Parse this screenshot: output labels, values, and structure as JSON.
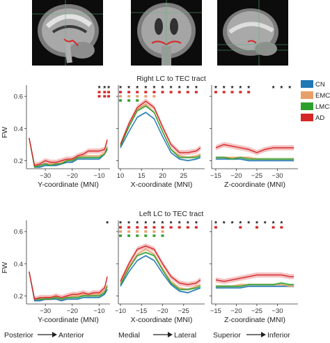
{
  "figure": {
    "row_titles": [
      "Right LC to TEC tract",
      "Left LC to TEC tract"
    ],
    "ylabel": "FW",
    "xlabels": [
      "Y-coordinate (MNI)",
      "X-coordinate (MNI)",
      "Z-coordinate (MNI)"
    ],
    "legend": [
      {
        "label": "CN",
        "color": "#1f77b4"
      },
      {
        "label": "EMCI",
        "color": "#e8a06a"
      },
      {
        "label": "LMCI",
        "color": "#2ca02c"
      },
      {
        "label": "AD",
        "color": "#d62728"
      }
    ],
    "direction_labels": [
      {
        "from": "Posterior",
        "to": "Anterior"
      },
      {
        "from": "Medial",
        "to": "Lateral"
      },
      {
        "from": "Superior",
        "to": "Inferior"
      }
    ]
  },
  "chart_data": [
    {
      "type": "line",
      "title": "Right LC to TEC tract",
      "xlabel": "Y-coordinate (MNI)",
      "ylabel": "FW",
      "xlim": [
        -37,
        -6
      ],
      "ylim": [
        0.15,
        0.67
      ],
      "xticks": [
        -30,
        -20,
        -10
      ],
      "xticklabels": [
        "-30",
        "-20",
        "-10"
      ],
      "yticks": [
        0.2,
        0.4,
        0.6
      ],
      "yticklabels": [
        "0.2",
        "0.4",
        "0.6"
      ],
      "x": [
        -36,
        -34,
        -32,
        -30,
        -28,
        -26,
        -24,
        -22,
        -20,
        -18,
        -16,
        -14,
        -12,
        -10,
        -8,
        -7
      ],
      "series": [
        {
          "name": "CN",
          "values": [
            0.34,
            0.16,
            0.16,
            0.17,
            0.17,
            0.17,
            0.18,
            0.19,
            0.19,
            0.21,
            0.21,
            0.21,
            0.21,
            0.21,
            0.24,
            0.27
          ]
        },
        {
          "name": "EMCI",
          "values": [
            0.34,
            0.17,
            0.17,
            0.18,
            0.18,
            0.18,
            0.19,
            0.2,
            0.21,
            0.22,
            0.23,
            0.23,
            0.23,
            0.23,
            0.25,
            0.29
          ]
        },
        {
          "name": "LMCI",
          "values": [
            0.34,
            0.16,
            0.17,
            0.18,
            0.17,
            0.18,
            0.18,
            0.2,
            0.2,
            0.22,
            0.22,
            0.22,
            0.22,
            0.22,
            0.24,
            0.28
          ]
        },
        {
          "name": "AD",
          "values": [
            0.34,
            0.17,
            0.18,
            0.2,
            0.19,
            0.19,
            0.2,
            0.21,
            0.21,
            0.23,
            0.24,
            0.26,
            0.26,
            0.26,
            0.27,
            0.33
          ]
        }
      ],
      "significance": [
        {
          "x": -10,
          "marks": [
            "*",
            "#d62728",
            "#d62728"
          ]
        },
        {
          "x": -8,
          "marks": [
            "*",
            "#d62728",
            "#d62728"
          ]
        },
        {
          "x": -6.5,
          "marks": [
            "*",
            "#d62728",
            "#d62728"
          ]
        }
      ]
    },
    {
      "type": "line",
      "title": "",
      "xlabel": "X-coordinate (MNI)",
      "ylabel": "FW",
      "xlim": [
        9.5,
        30
      ],
      "ylim": [
        0.15,
        0.67
      ],
      "xticks": [
        10,
        15,
        20,
        25
      ],
      "xticklabels": [
        "10",
        "15",
        "20",
        "25"
      ],
      "yticks": [
        0.2,
        0.4,
        0.6
      ],
      "yticklabels": [
        "",
        "",
        ""
      ],
      "x": [
        10,
        12,
        14,
        16,
        18,
        20,
        22,
        24,
        26,
        28,
        29
      ],
      "series": [
        {
          "name": "CN",
          "values": [
            0.28,
            0.38,
            0.47,
            0.5,
            0.46,
            0.35,
            0.25,
            0.21,
            0.2,
            0.21,
            0.22
          ]
        },
        {
          "name": "EMCI",
          "values": [
            0.29,
            0.41,
            0.52,
            0.55,
            0.5,
            0.38,
            0.27,
            0.23,
            0.22,
            0.23,
            0.24
          ]
        },
        {
          "name": "LMCI",
          "values": [
            0.29,
            0.41,
            0.51,
            0.54,
            0.5,
            0.38,
            0.27,
            0.22,
            0.22,
            0.22,
            0.23
          ]
        },
        {
          "name": "AD",
          "values": [
            0.3,
            0.43,
            0.53,
            0.57,
            0.53,
            0.41,
            0.3,
            0.25,
            0.25,
            0.26,
            0.28
          ]
        }
      ],
      "significance": [
        {
          "x": 10,
          "marks": [
            "*",
            "#d62728",
            "#e8a06a",
            "#2ca02c"
          ]
        },
        {
          "x": 12,
          "marks": [
            "*",
            "#d62728",
            "#e8a06a",
            "#2ca02c"
          ]
        },
        {
          "x": 14,
          "marks": [
            "*",
            "#d62728",
            "#e8a06a",
            "#2ca02c"
          ]
        },
        {
          "x": 16,
          "marks": [
            "*",
            "#d62728",
            "#e8a06a"
          ]
        },
        {
          "x": 18,
          "marks": [
            "*",
            "#d62728",
            "#e8a06a"
          ]
        },
        {
          "x": 20,
          "marks": [
            "*",
            "#d62728"
          ]
        },
        {
          "x": 22,
          "marks": [
            "*",
            "#d62728"
          ]
        },
        {
          "x": 24,
          "marks": [
            "*",
            "#d62728"
          ]
        },
        {
          "x": 26,
          "marks": [
            "*",
            "#d62728"
          ]
        },
        {
          "x": 28,
          "marks": [
            "*",
            "#d62728"
          ]
        }
      ]
    },
    {
      "type": "line",
      "title": "",
      "xlabel": "Z-coordinate (MNI)",
      "ylabel": "FW",
      "xlim": [
        -14,
        -35
      ],
      "ylim": [
        0.15,
        0.67
      ],
      "xticks": [
        -15,
        -20,
        -25,
        -30
      ],
      "xticklabels": [
        "-15",
        "-20",
        "-25",
        "-30"
      ],
      "yticks": [
        0.2,
        0.4,
        0.6
      ],
      "yticklabels": [
        "",
        "",
        ""
      ],
      "x": [
        -15,
        -17,
        -19,
        -21,
        -23,
        -25,
        -27,
        -29,
        -31,
        -33,
        -34
      ],
      "series": [
        {
          "name": "CN",
          "values": [
            0.21,
            0.21,
            0.21,
            0.21,
            0.2,
            0.2,
            0.2,
            0.2,
            0.2,
            0.2,
            0.2
          ]
        },
        {
          "name": "EMCI",
          "values": [
            0.22,
            0.22,
            0.22,
            0.22,
            0.22,
            0.21,
            0.21,
            0.21,
            0.21,
            0.21,
            0.21
          ]
        },
        {
          "name": "LMCI",
          "values": [
            0.22,
            0.22,
            0.21,
            0.22,
            0.21,
            0.21,
            0.21,
            0.21,
            0.21,
            0.21,
            0.21
          ]
        },
        {
          "name": "AD",
          "values": [
            0.28,
            0.3,
            0.29,
            0.28,
            0.27,
            0.25,
            0.27,
            0.28,
            0.28,
            0.28,
            0.28
          ]
        }
      ],
      "significance": [
        {
          "x": -15,
          "marks": [
            "*",
            "#d62728"
          ]
        },
        {
          "x": -17,
          "marks": [
            "*",
            "#d62728"
          ]
        },
        {
          "x": -19,
          "marks": [
            "*",
            "#d62728"
          ]
        },
        {
          "x": -21,
          "marks": [
            "*",
            "#d62728"
          ]
        },
        {
          "x": -23,
          "marks": [
            "*",
            "#d62728"
          ]
        },
        {
          "x": -29,
          "marks": [
            "*"
          ]
        },
        {
          "x": -31,
          "marks": [
            "*"
          ]
        },
        {
          "x": -33,
          "marks": [
            "*"
          ]
        }
      ]
    },
    {
      "type": "line",
      "title": "Left LC to TEC tract",
      "xlabel": "Y-coordinate (MNI)",
      "ylabel": "FW",
      "xlim": [
        -37,
        -6
      ],
      "ylim": [
        0.15,
        0.67
      ],
      "xticks": [
        -30,
        -20,
        -10
      ],
      "xticklabels": [
        "-30",
        "-20",
        "-10"
      ],
      "yticks": [
        0.2,
        0.4,
        0.6
      ],
      "yticklabels": [
        "0.2",
        "0.4",
        "0.6"
      ],
      "x": [
        -36,
        -34,
        -32,
        -30,
        -28,
        -26,
        -24,
        -22,
        -20,
        -18,
        -16,
        -14,
        -12,
        -10,
        -8,
        -7
      ],
      "series": [
        {
          "name": "CN",
          "values": [
            0.35,
            0.17,
            0.17,
            0.18,
            0.18,
            0.18,
            0.17,
            0.18,
            0.18,
            0.18,
            0.19,
            0.19,
            0.19,
            0.19,
            0.21,
            0.24
          ]
        },
        {
          "name": "EMCI",
          "values": [
            0.35,
            0.18,
            0.18,
            0.19,
            0.19,
            0.19,
            0.18,
            0.19,
            0.2,
            0.2,
            0.21,
            0.21,
            0.21,
            0.21,
            0.23,
            0.27
          ]
        },
        {
          "name": "LMCI",
          "values": [
            0.35,
            0.18,
            0.18,
            0.18,
            0.18,
            0.19,
            0.18,
            0.19,
            0.19,
            0.19,
            0.2,
            0.2,
            0.2,
            0.2,
            0.22,
            0.26
          ]
        },
        {
          "name": "AD",
          "values": [
            0.35,
            0.18,
            0.19,
            0.19,
            0.19,
            0.2,
            0.19,
            0.2,
            0.21,
            0.21,
            0.22,
            0.21,
            0.22,
            0.22,
            0.25,
            0.32
          ]
        }
      ],
      "significance": [
        {
          "x": -7,
          "marks": [
            "*"
          ]
        }
      ]
    },
    {
      "type": "line",
      "title": "",
      "xlabel": "X-coordinate (MNI)",
      "ylabel": "FW",
      "xlim": [
        -9.5,
        -30
      ],
      "ylim": [
        0.15,
        0.67
      ],
      "xticks": [
        -10,
        -15,
        -20,
        -25
      ],
      "xticklabels": [
        "-10",
        "-15",
        "-20",
        "-25"
      ],
      "yticks": [
        0.2,
        0.4,
        0.6
      ],
      "yticklabels": [
        "",
        "",
        ""
      ],
      "x": [
        -10,
        -12,
        -14,
        -16,
        -18,
        -20,
        -22,
        -24,
        -26,
        -28,
        -29
      ],
      "series": [
        {
          "name": "CN",
          "values": [
            0.26,
            0.35,
            0.42,
            0.45,
            0.42,
            0.34,
            0.27,
            0.23,
            0.22,
            0.24,
            0.25
          ]
        },
        {
          "name": "EMCI",
          "values": [
            0.28,
            0.38,
            0.46,
            0.49,
            0.46,
            0.37,
            0.29,
            0.25,
            0.24,
            0.26,
            0.27
          ]
        },
        {
          "name": "LMCI",
          "values": [
            0.27,
            0.37,
            0.45,
            0.47,
            0.45,
            0.36,
            0.28,
            0.24,
            0.24,
            0.25,
            0.26
          ]
        },
        {
          "name": "AD",
          "values": [
            0.29,
            0.4,
            0.49,
            0.51,
            0.49,
            0.4,
            0.32,
            0.28,
            0.27,
            0.28,
            0.3
          ]
        }
      ],
      "significance": [
        {
          "x": -10,
          "marks": [
            "*",
            "#d62728",
            "#e8a06a",
            "#2ca02c"
          ]
        },
        {
          "x": -12,
          "marks": [
            "*",
            "#d62728",
            "#e8a06a",
            "#2ca02c"
          ]
        },
        {
          "x": -14,
          "marks": [
            "*",
            "#d62728",
            "#e8a06a",
            "#2ca02c"
          ]
        },
        {
          "x": -16,
          "marks": [
            "*",
            "#d62728",
            "#e8a06a",
            "#2ca02c"
          ]
        },
        {
          "x": -18,
          "marks": [
            "*",
            "#d62728",
            "#e8a06a",
            "#2ca02c"
          ]
        },
        {
          "x": -20,
          "marks": [
            "*",
            "#d62728",
            "#e8a06a",
            "#2ca02c"
          ]
        },
        {
          "x": -22,
          "marks": [
            "*",
            "#d62728"
          ]
        },
        {
          "x": -24,
          "marks": [
            "*",
            "#d62728"
          ]
        },
        {
          "x": -26,
          "marks": [
            "*",
            "#d62728"
          ]
        },
        {
          "x": -28,
          "marks": [
            "*",
            "#d62728"
          ]
        }
      ]
    },
    {
      "type": "line",
      "title": "",
      "xlabel": "Z-coordinate (MNI)",
      "ylabel": "FW",
      "xlim": [
        -14,
        -35
      ],
      "ylim": [
        0.15,
        0.67
      ],
      "xticks": [
        -15,
        -20,
        -25,
        -30
      ],
      "xticklabels": [
        "-15",
        "-20",
        "-25",
        "-30"
      ],
      "yticks": [
        0.2,
        0.4,
        0.6
      ],
      "yticklabels": [
        "",
        "",
        ""
      ],
      "x": [
        -15,
        -17,
        -19,
        -21,
        -23,
        -25,
        -27,
        -29,
        -31,
        -33,
        -34
      ],
      "series": [
        {
          "name": "CN",
          "values": [
            0.25,
            0.25,
            0.25,
            0.25,
            0.26,
            0.26,
            0.26,
            0.26,
            0.26,
            0.26,
            0.26
          ]
        },
        {
          "name": "EMCI",
          "values": [
            0.26,
            0.26,
            0.26,
            0.27,
            0.27,
            0.27,
            0.27,
            0.27,
            0.27,
            0.26,
            0.26
          ]
        },
        {
          "name": "LMCI",
          "values": [
            0.26,
            0.26,
            0.26,
            0.26,
            0.27,
            0.27,
            0.27,
            0.27,
            0.28,
            0.27,
            0.27
          ]
        },
        {
          "name": "AD",
          "values": [
            0.3,
            0.29,
            0.3,
            0.31,
            0.32,
            0.33,
            0.33,
            0.33,
            0.33,
            0.32,
            0.32
          ]
        }
      ],
      "significance": [
        {
          "x": -15,
          "marks": [
            "*",
            "#d62728"
          ]
        },
        {
          "x": -17,
          "marks": [
            "*"
          ]
        },
        {
          "x": -19,
          "marks": [
            "*"
          ]
        },
        {
          "x": -21,
          "marks": [
            "*",
            "#d62728"
          ]
        },
        {
          "x": -23,
          "marks": [
            "*"
          ]
        },
        {
          "x": -25,
          "marks": [
            "*",
            "#d62728"
          ]
        },
        {
          "x": -27,
          "marks": [
            "*"
          ]
        },
        {
          "x": -29,
          "marks": [
            "*",
            "#d62728"
          ]
        },
        {
          "x": -31,
          "marks": [
            "*",
            "#d62728"
          ]
        }
      ]
    }
  ]
}
